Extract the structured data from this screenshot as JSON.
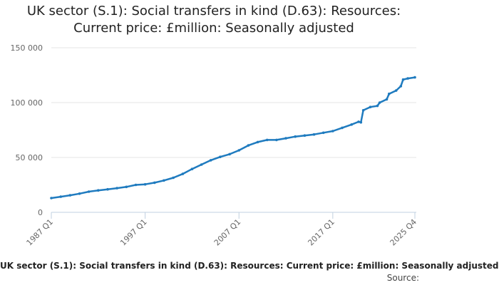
{
  "chart_data": {
    "type": "line",
    "title_line1": "UK sector (S.1): Social transfers in kind (D.63): Resources:",
    "title_line2": "Current price: £million: Seasonally adjusted",
    "xlabel": "",
    "ylabel": "",
    "x_tick_labels": [
      "1987 Q1",
      "1997 Q1",
      "2007 Q1",
      "2017 Q1",
      "2025 Q4"
    ],
    "y_tick_labels": [
      "0",
      "50 000",
      "100 000",
      "150 000"
    ],
    "y_ticks": [
      0,
      50000,
      100000,
      150000
    ],
    "ylim": [
      0,
      150000
    ],
    "xlim": [
      "1987 Q1",
      "2025 Q4"
    ],
    "grid": "horizontal",
    "legend_position": "bottom",
    "color": "#1f7bbf",
    "series": [
      {
        "name": "UK sector (S.1): Social transfers in kind (D.63): Resources: Current price: £million: Seasonally adjusted",
        "points": [
          [
            "1987 Q1",
            13000
          ],
          [
            "1988 Q1",
            14200
          ],
          [
            "1989 Q1",
            15500
          ],
          [
            "1990 Q1",
            17000
          ],
          [
            "1991 Q1",
            18800
          ],
          [
            "1992 Q1",
            20000
          ],
          [
            "1993 Q1",
            21000
          ],
          [
            "1994 Q1",
            22000
          ],
          [
            "1995 Q1",
            23200
          ],
          [
            "1996 Q1",
            25000
          ],
          [
            "1997 Q1",
            25500
          ],
          [
            "1998 Q1",
            27000
          ],
          [
            "1999 Q1",
            29000
          ],
          [
            "2000 Q1",
            31500
          ],
          [
            "2001 Q1",
            35000
          ],
          [
            "2002 Q1",
            39500
          ],
          [
            "2003 Q1",
            43500
          ],
          [
            "2004 Q1",
            47500
          ],
          [
            "2005 Q1",
            50500
          ],
          [
            "2006 Q1",
            53000
          ],
          [
            "2007 Q1",
            56500
          ],
          [
            "2008 Q1",
            61000
          ],
          [
            "2009 Q1",
            64000
          ],
          [
            "2010 Q1",
            66000
          ],
          [
            "2011 Q1",
            66000
          ],
          [
            "2012 Q1",
            67500
          ],
          [
            "2013 Q1",
            69000
          ],
          [
            "2014 Q1",
            70000
          ],
          [
            "2015 Q1",
            71000
          ],
          [
            "2016 Q1",
            72500
          ],
          [
            "2017 Q1",
            74000
          ],
          [
            "2018 Q1",
            77000
          ],
          [
            "2019 Q1",
            80000
          ],
          [
            "2019 Q4",
            82500
          ],
          [
            "2020 Q1",
            82000
          ],
          [
            "2020 Q2",
            93000
          ],
          [
            "2021 Q1",
            96000
          ],
          [
            "2021 Q4",
            97000
          ],
          [
            "2022 Q1",
            100000
          ],
          [
            "2022 Q4",
            103000
          ],
          [
            "2023 Q1",
            108000
          ],
          [
            "2023 Q4",
            111000
          ],
          [
            "2024 Q2",
            115000
          ],
          [
            "2024 Q3",
            121000
          ],
          [
            "2025 Q1",
            122000
          ],
          [
            "2025 Q4",
            123000
          ]
        ]
      }
    ]
  },
  "legend_text": "UK sector (S.1): Social transfers in kind (D.63): Resources: Current price: £million: Seasonally adjusted",
  "source_text": "Source:"
}
